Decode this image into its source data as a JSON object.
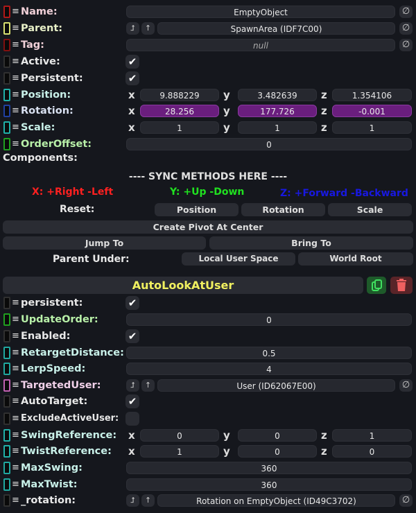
{
  "slot_fields": [
    {
      "label": "Name:",
      "type": "text",
      "value": "EmptyObject",
      "nullable": true,
      "color": "#f0d0d8",
      "ind": "#b01818"
    },
    {
      "label": "Parent:",
      "type": "ref",
      "value": "SpawnArea (IDF7C00)",
      "color": "#e8f0c8",
      "ind": "#d8e070"
    },
    {
      "label": "Tag:",
      "type": "text",
      "value": "null",
      "italic": true,
      "nullable": true,
      "color": "#f0d0d8",
      "ind": "#801010"
    },
    {
      "label": "Active:",
      "type": "check",
      "checked": true,
      "color": "#e8e8e8",
      "ind": "#303030"
    },
    {
      "label": "Persistent:",
      "type": "check",
      "checked": true,
      "color": "#e8e8e8",
      "ind": "#303030"
    },
    {
      "label": "Position:",
      "type": "vec3",
      "x": "9.888229",
      "y": "3.482639",
      "z": "1.354106",
      "color": "#c8f0e8",
      "ind": "#20b0a8"
    },
    {
      "label": "Rotation:",
      "type": "vec3",
      "x": "28.256",
      "y": "177.726",
      "z": "-0.001",
      "highlight": true,
      "color": "#d8e0f0",
      "ind": "#2040a0"
    },
    {
      "label": "Scale:",
      "type": "vec3",
      "x": "1",
      "y": "1",
      "z": "1",
      "color": "#c8f0e8",
      "ind": "#20b0a8"
    },
    {
      "label": "OrderOffset:",
      "type": "num",
      "value": "0",
      "color": "#b8f0a8",
      "ind": "#20a020"
    }
  ],
  "components_label": "Components:",
  "sync_header": "---- SYNC METHODS HERE ----",
  "axis_hints": {
    "x": "X: +Right -Left",
    "y": "Y: +Up -Down",
    "z": "Z: +Forward -Backward",
    "x_color": "#ff2020",
    "y_color": "#20e020",
    "z_color": "#1818e0"
  },
  "reset": {
    "label": "Reset:",
    "position": "Position",
    "rotation": "Rotation",
    "scale": "Scale"
  },
  "create_pivot": "Create Pivot At Center",
  "jump_to": "Jump To",
  "bring_to": "Bring To",
  "parent_under": {
    "label": "Parent Under:",
    "local": "Local User Space",
    "world": "World Root"
  },
  "component": {
    "name": "AutoLookAtUser",
    "name_color": "#f0f060",
    "duplicate_icon": "copy-icon",
    "delete_icon": "trash-icon"
  },
  "component_fields": [
    {
      "label": "persistent:",
      "type": "check",
      "checked": true,
      "color": "#e8e8e8",
      "ind": "#303030"
    },
    {
      "label": "UpdateOrder:",
      "type": "num",
      "value": "0",
      "color": "#b8f0a8",
      "ind": "#20a020"
    },
    {
      "label": "Enabled:",
      "type": "check",
      "checked": true,
      "color": "#e8e8e8",
      "ind": "#303030"
    },
    {
      "label": "RetargetDistance:",
      "type": "num",
      "value": "0.5",
      "color": "#c8f0e8",
      "ind": "#20a8a0"
    },
    {
      "label": "LerpSpeed:",
      "type": "num",
      "value": "4",
      "color": "#c8f0e8",
      "ind": "#20a8a0"
    },
    {
      "label": "TargetedUser:",
      "type": "ref",
      "value": "User  (ID62067E00)",
      "color": "#f0d0e8",
      "ind": "#c060b0"
    },
    {
      "label": "AutoTarget:",
      "type": "check",
      "checked": true,
      "color": "#e8e8e8",
      "ind": "#303030"
    },
    {
      "label": "ExcludeActiveUser:",
      "type": "check",
      "checked": false,
      "color": "#e8e8e8",
      "ind": "#303030",
      "small": true
    },
    {
      "label": "SwingReference:",
      "type": "vec3",
      "x": "0",
      "y": "0",
      "z": "1",
      "color": "#c8f0e8",
      "ind": "#20b0a8"
    },
    {
      "label": "TwistReference:",
      "type": "vec3",
      "x": "1",
      "y": "0",
      "z": "0",
      "color": "#c8f0e8",
      "ind": "#20b0a8"
    },
    {
      "label": "MaxSwing:",
      "type": "num",
      "value": "360",
      "color": "#c8f0e8",
      "ind": "#20a8a0"
    },
    {
      "label": "MaxTwist:",
      "type": "num",
      "value": "360",
      "color": "#c8f0e8",
      "ind": "#20a8a0"
    },
    {
      "label": "_rotation:",
      "type": "ref",
      "value": "Rotation on EmptyObject (ID49C3702)",
      "color": "#e8e8e8",
      "ind": "#303030"
    }
  ]
}
